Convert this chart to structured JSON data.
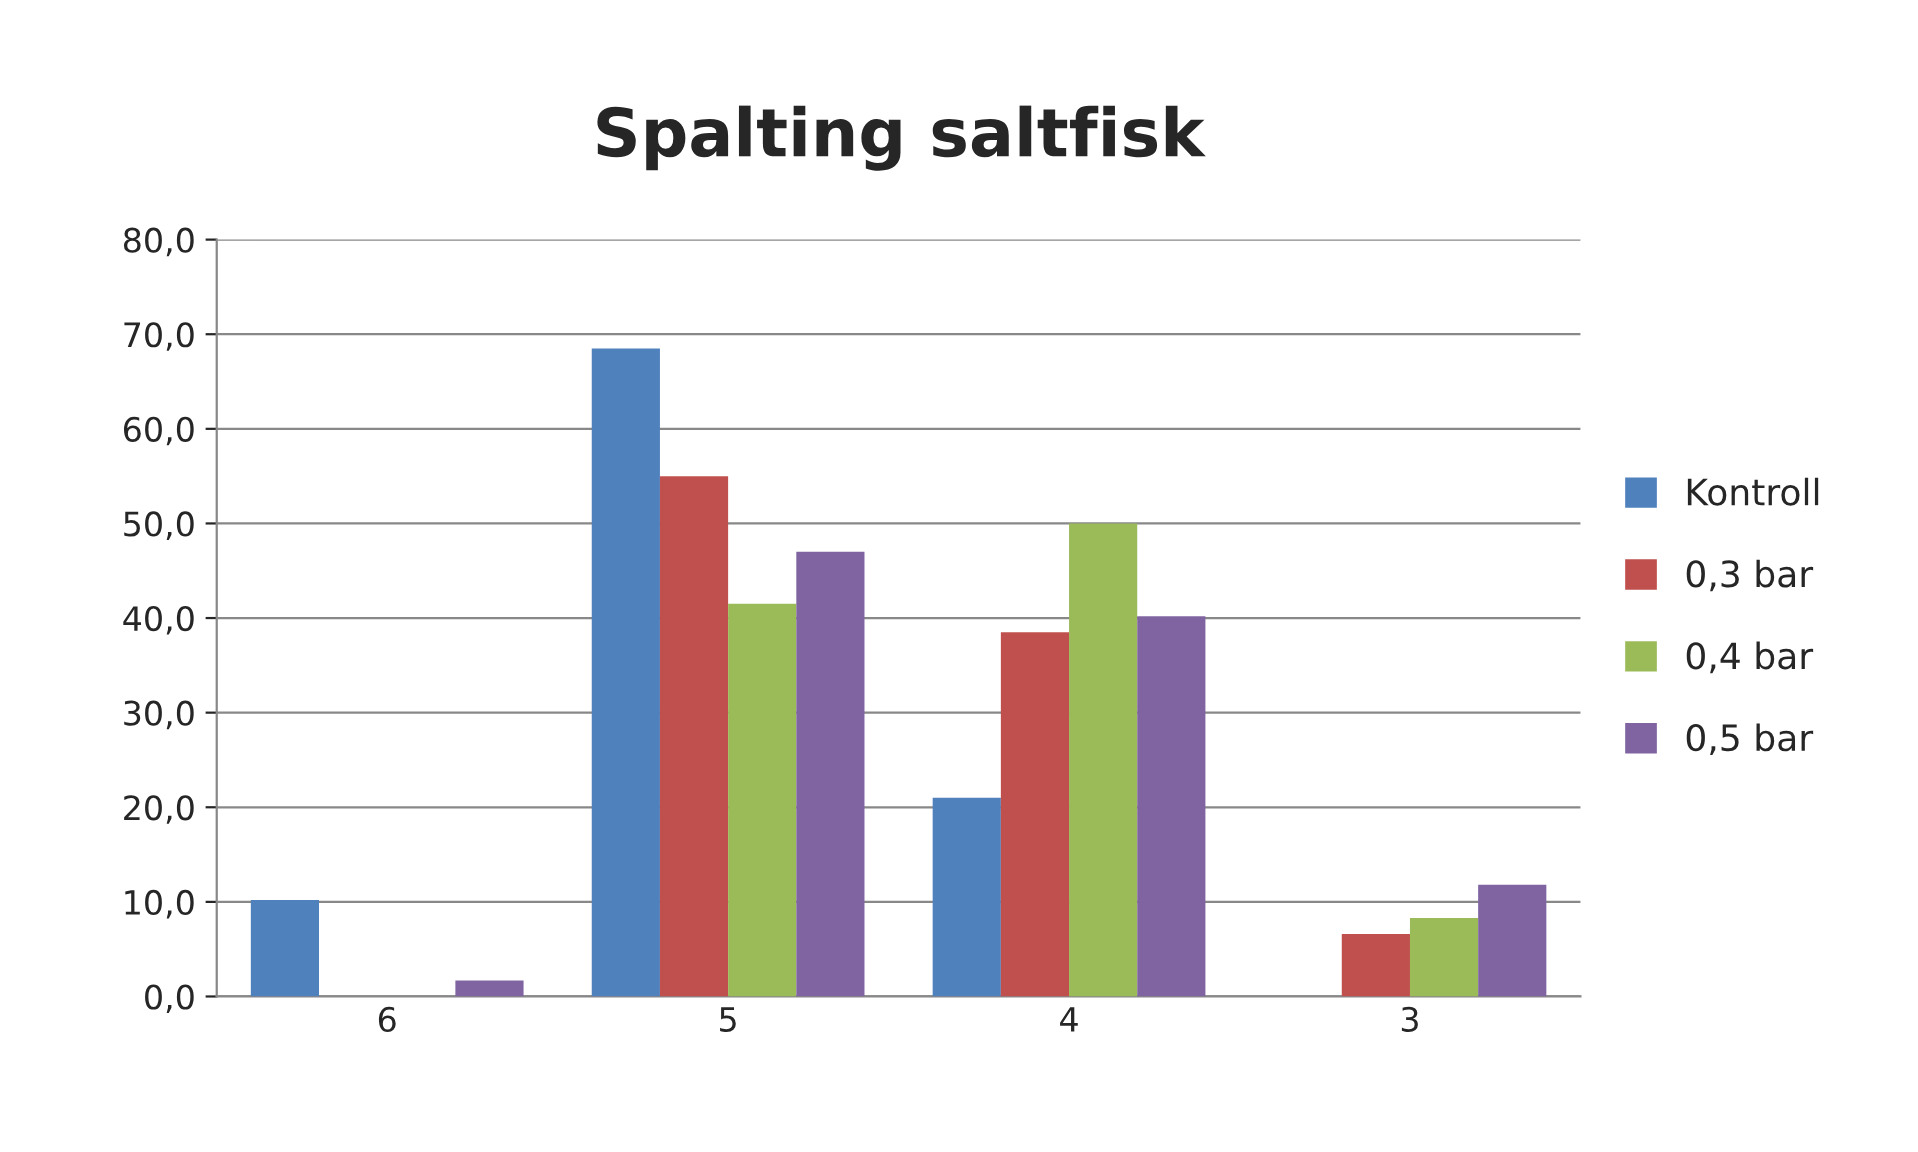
{
  "chart_data": {
    "type": "bar",
    "title": "Spalting saltfisk",
    "categories": [
      "6",
      "5",
      "4",
      "3"
    ],
    "series": [
      {
        "name": "Kontroll",
        "color": "#4f81bd",
        "values": [
          10.2,
          68.5,
          21.0,
          null
        ]
      },
      {
        "name": "0,3 bar",
        "color": "#c0504d",
        "values": [
          null,
          55.0,
          38.5,
          6.6
        ]
      },
      {
        "name": "0,4 bar",
        "color": "#9bbb59",
        "values": [
          null,
          41.5,
          50.0,
          8.3
        ]
      },
      {
        "name": "0,5 bar",
        "color": "#8064a2",
        "values": [
          1.7,
          47.0,
          40.2,
          11.8
        ]
      }
    ],
    "ylim": [
      0,
      80
    ],
    "yticks": [
      {
        "value": 0,
        "label": "0,0"
      },
      {
        "value": 10,
        "label": "10,0"
      },
      {
        "value": 20,
        "label": "20,0"
      },
      {
        "value": 30,
        "label": "30,0"
      },
      {
        "value": 40,
        "label": "40,0"
      },
      {
        "value": 50,
        "label": "50,0"
      },
      {
        "value": 60,
        "label": "60,0"
      },
      {
        "value": 70,
        "label": "70,0"
      },
      {
        "value": 80,
        "label": "80,0"
      }
    ],
    "grid": "y",
    "legend": "right"
  }
}
